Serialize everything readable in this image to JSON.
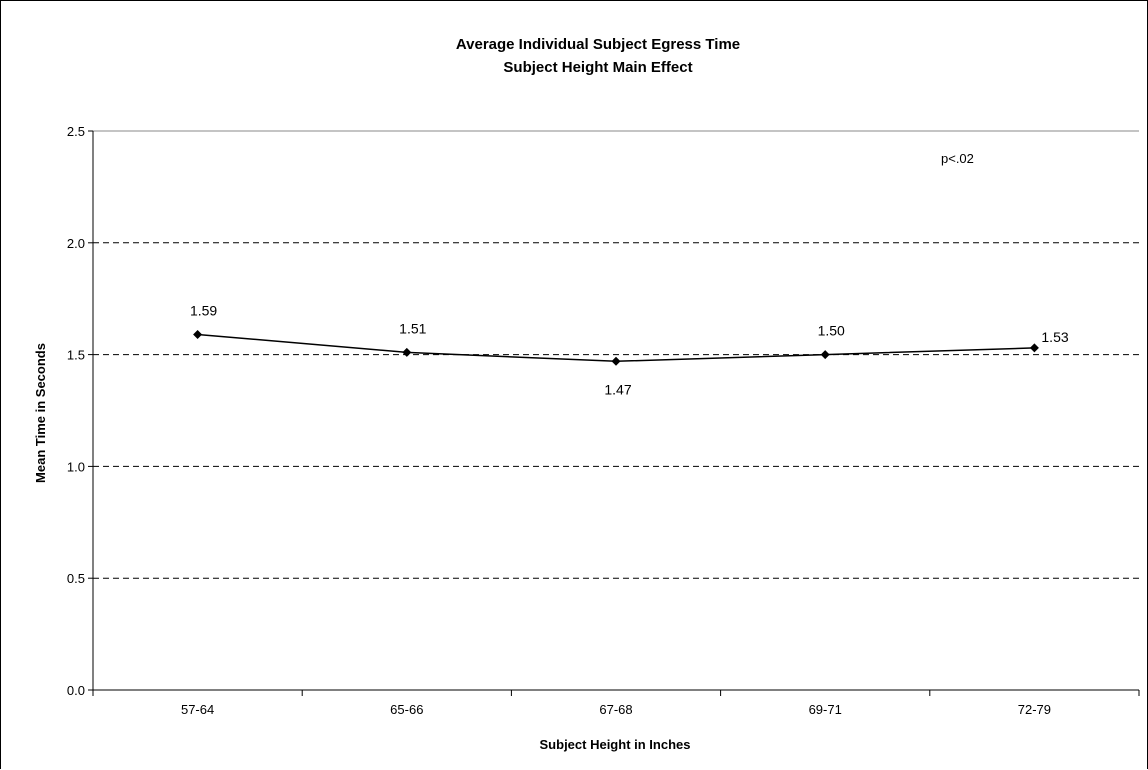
{
  "chart_data": {
    "type": "line",
    "title_lines": [
      "Average Individual Subject Egress Time",
      "Subject Height Main Effect"
    ],
    "xlabel": "Subject Height in Inches",
    "ylabel": "Mean Time in Seconds",
    "categories": [
      "57-64",
      "65-66",
      "67-68",
      "69-71",
      "72-79"
    ],
    "series": [
      {
        "values": [
          1.59,
          1.51,
          1.47,
          1.5,
          1.53
        ]
      }
    ],
    "data_labels": [
      "1.59",
      "1.51",
      "1.47",
      "1.50",
      "1.53"
    ],
    "ylim": [
      0,
      2.5
    ],
    "yticks": [
      "0.0",
      "0.5",
      "1.0",
      "1.5",
      "2.0",
      "2.5"
    ],
    "grid": "dashed horizontal",
    "annotation": "p<.02",
    "marker": "diamond",
    "line_color": "#000000"
  }
}
